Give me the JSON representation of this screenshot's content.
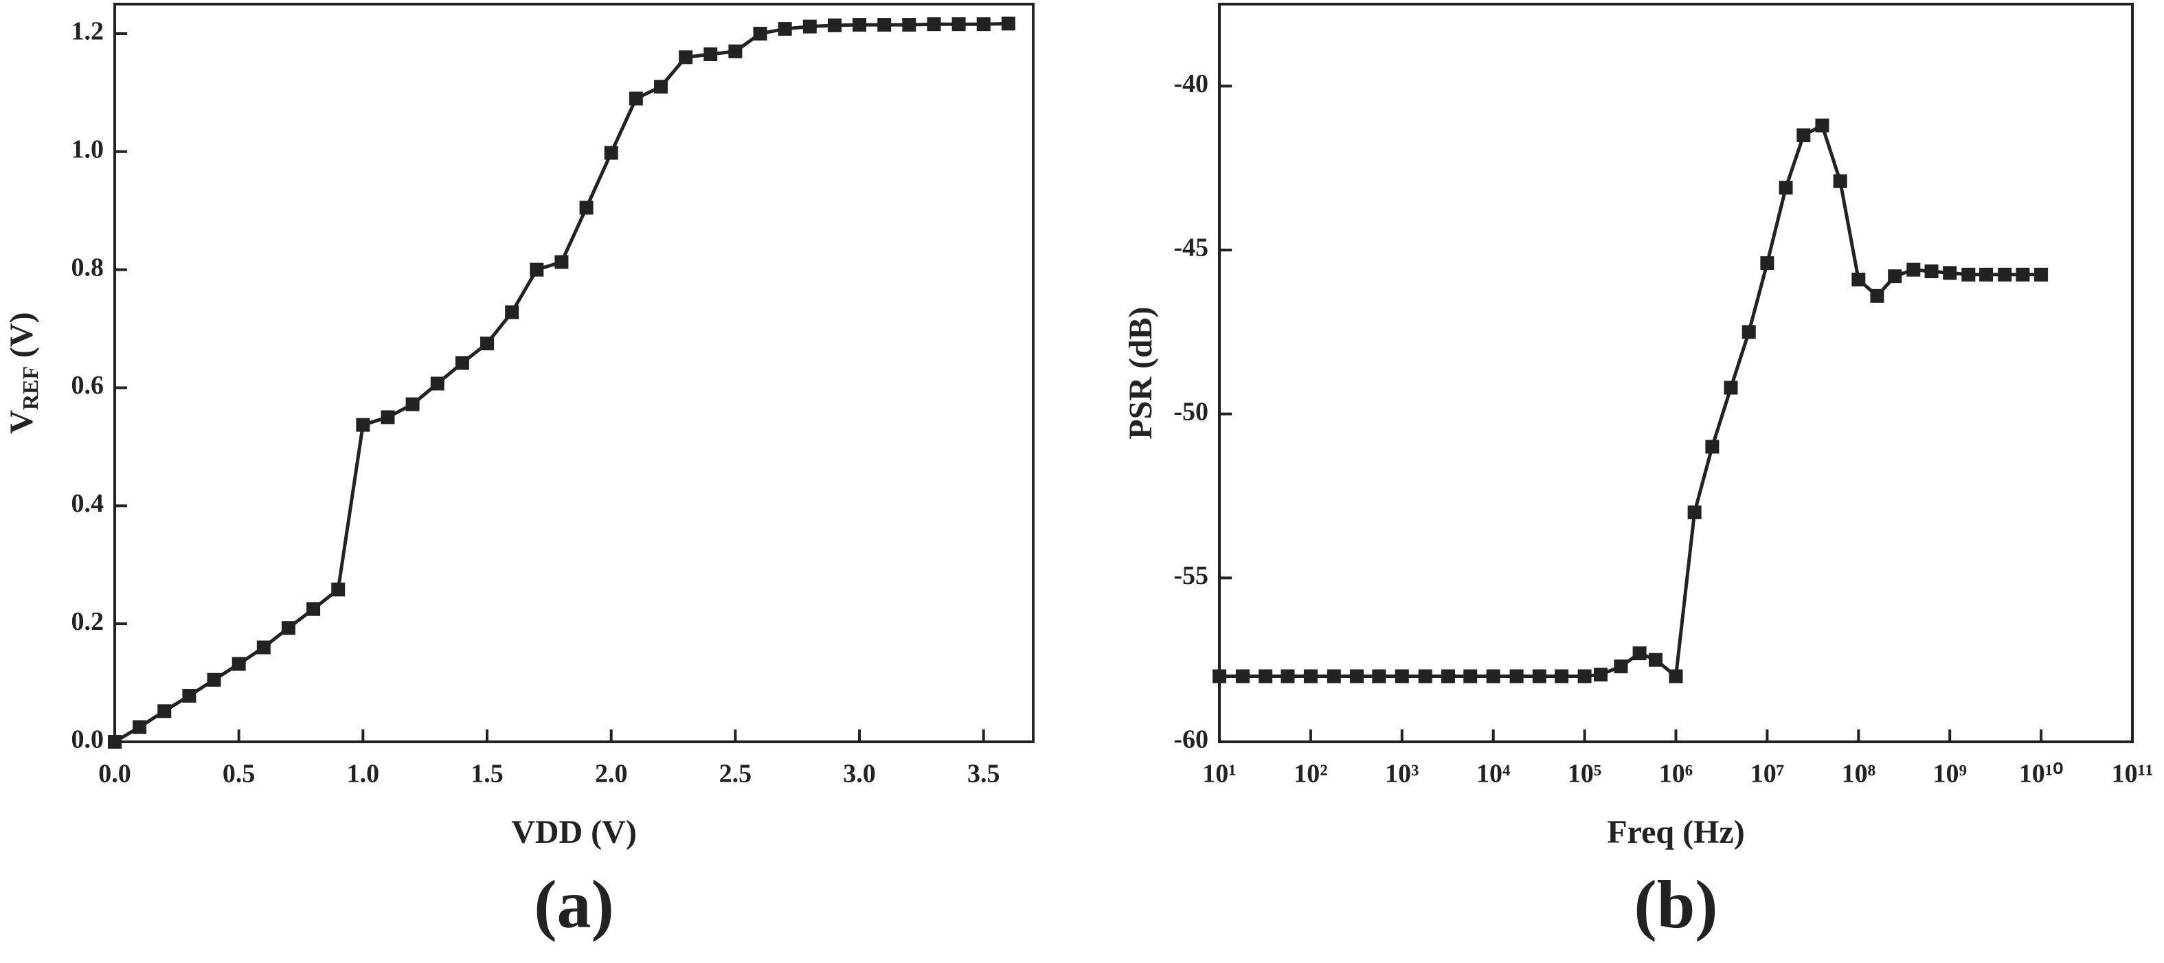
{
  "chart_data": [
    {
      "type": "line",
      "panel_label": "(a)",
      "xlabel": "VDD (V)",
      "ylabel": {
        "text": "V",
        "subscript": "REF",
        "suffix": " (V)"
      },
      "color": "#222222",
      "marker": "square",
      "log_x": false,
      "x": [
        0,
        0.1,
        0.2,
        0.3,
        0.4,
        0.5,
        0.6,
        0.7,
        0.8,
        0.9,
        1.0,
        1.1,
        1.2,
        1.3,
        1.4,
        1.5,
        1.6,
        1.7,
        1.8,
        1.9,
        2.0,
        2.1,
        2.2,
        2.3,
        2.4,
        2.5,
        2.6,
        2.7,
        2.8,
        2.9,
        3.0,
        3.1,
        3.2,
        3.3,
        3.4,
        3.5,
        3.6
      ],
      "values": [
        0,
        0.025,
        0.052,
        0.078,
        0.105,
        0.132,
        0.16,
        0.193,
        0.225,
        0.258,
        0.537,
        0.55,
        0.572,
        0.607,
        0.642,
        0.675,
        0.728,
        0.8,
        0.813,
        0.905,
        0.998,
        1.09,
        1.11,
        1.16,
        1.165,
        1.17,
        1.2,
        1.208,
        1.212,
        1.214,
        1.215,
        1.215,
        1.215,
        1.216,
        1.216,
        1.216,
        1.217
      ],
      "xlim": [
        0,
        3.7
      ],
      "ylim": [
        0,
        1.25
      ],
      "xticks": [
        {
          "value": 0,
          "label": "0.0"
        },
        0.5,
        {
          "value": 1,
          "label": "1.0"
        },
        1.5,
        {
          "value": 2,
          "label": "2.0"
        },
        2.5,
        {
          "value": 3,
          "label": "3.0"
        },
        3.5
      ],
      "yticks": [
        {
          "value": 0,
          "label": "0.0"
        },
        0.2,
        0.4,
        0.6,
        0.8,
        {
          "value": 1,
          "label": "1.0"
        },
        1.2
      ]
    },
    {
      "type": "line",
      "panel_label": "(b)",
      "xlabel": "Freq (Hz)",
      "ylabel": {
        "text": "PSR (dB)"
      },
      "color": "#222222",
      "marker": "square",
      "log_x": true,
      "x": [
        10,
        18,
        32,
        56,
        100,
        180,
        320,
        560,
        1000,
        1800,
        3200,
        5600,
        10000,
        18000,
        32000,
        56000,
        100000,
        150000,
        250000,
        400000,
        600000,
        1000000,
        1600000,
        2500000,
        4000000,
        6300000,
        10000000,
        16000000,
        25000000,
        40000000,
        63000000,
        100000000,
        160000000,
        250000000,
        400000000,
        630000000,
        1000000000,
        1600000000,
        2500000000,
        4000000000,
        6300000000,
        10000000000
      ],
      "values": [
        -58,
        -58,
        -58,
        -58,
        -58,
        -58,
        -58,
        -58,
        -58,
        -58,
        -58,
        -58,
        -58,
        -58,
        -58,
        -58,
        -58,
        -57.95,
        -57.7,
        -57.3,
        -57.5,
        -58,
        -53,
        -51,
        -49.2,
        -47.5,
        -45.4,
        -43.1,
        -41.5,
        -41.2,
        -42.9,
        -45.9,
        -46.4,
        -45.8,
        -45.6,
        -45.65,
        -45.7,
        -45.75,
        -45.75,
        -45.75,
        -45.75,
        -45.75
      ],
      "xlim": [
        10,
        100000000000
      ],
      "ylim": [
        -60,
        -37.5
      ],
      "xticks": [
        {
          "value": 10,
          "label": "10¹"
        },
        {
          "value": 100,
          "label": "10²"
        },
        {
          "value": 1000,
          "label": "10³"
        },
        {
          "value": 10000,
          "label": "10⁴"
        },
        {
          "value": 100000,
          "label": "10⁵"
        },
        {
          "value": 1000000,
          "label": "10⁶"
        },
        {
          "value": 10000000,
          "label": "10⁷"
        },
        {
          "value": 100000000,
          "label": "10⁸"
        },
        {
          "value": 1000000000,
          "label": "10⁹"
        },
        {
          "value": 10000000000,
          "label": "10¹⁰"
        },
        {
          "value": 100000000000,
          "label": "10¹¹"
        }
      ],
      "yticks": [
        -60,
        -55,
        -50,
        -45,
        -40
      ]
    }
  ]
}
